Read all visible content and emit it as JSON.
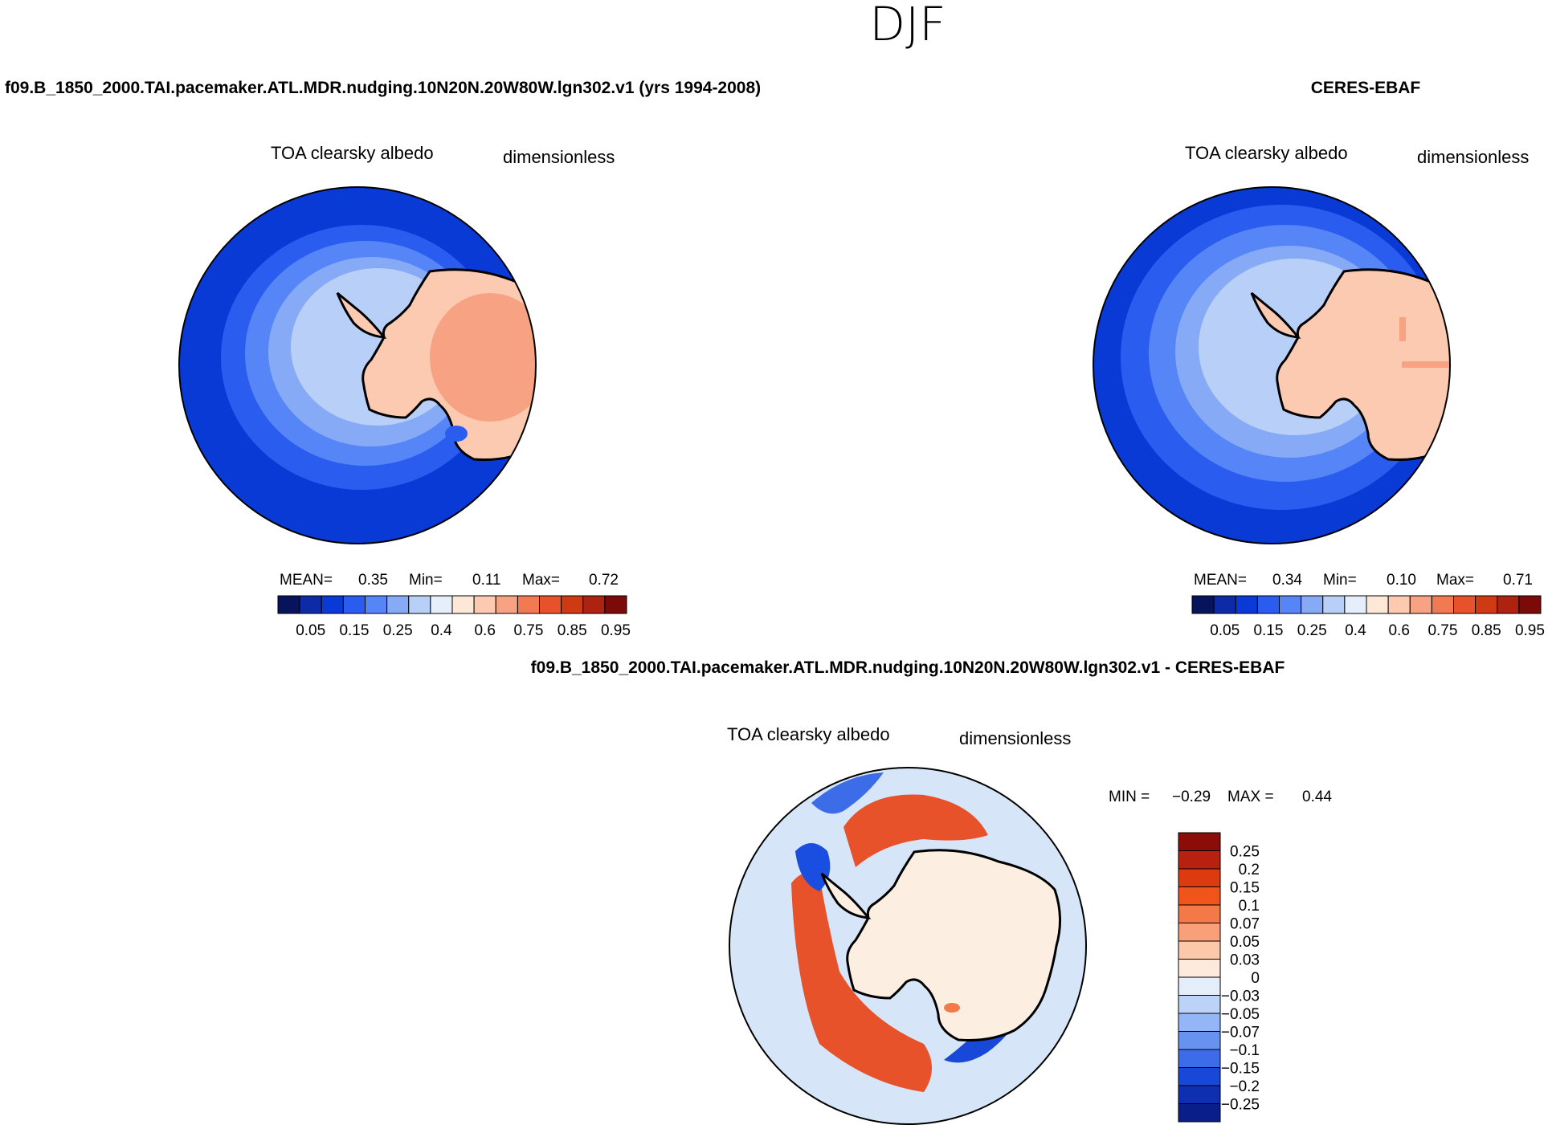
{
  "season": "DJF",
  "colors": {
    "ocean_deep": "#0a3ad6",
    "land_light": "#fcd0b6",
    "land_mid": "#f6a684",
    "diff_neutral": "#fdeee2",
    "diff_ocean": "#d6e6f8",
    "diff_pos": "#e8522a",
    "diff_neg": "#1a4ee0"
  },
  "chart_data": [
    {
      "type": "heatmap",
      "projection": "south-polar-stereographic",
      "title": "f09.B_1850_2000.TAI.pacemaker.ATL.MDR.nudging.10N20N.20W80W.lgn302.v1 (yrs 1994-2008)",
      "variable": "TOA clearsky albedo",
      "units": "dimensionless",
      "stats": {
        "mean_label": "MEAN=",
        "mean": "0.35",
        "min_label": "Min=",
        "min": "0.11",
        "max_label": "Max=",
        "max": "0.72"
      },
      "colorbar": {
        "tick_labels": [
          "0.05",
          "0.15",
          "0.25",
          "0.4",
          "0.6",
          "0.75",
          "0.85",
          "0.95"
        ],
        "colors": [
          "#08135e",
          "#0d2ba6",
          "#0a3ad6",
          "#2a5cf0",
          "#5585f6",
          "#86aaf6",
          "#b8cff7",
          "#e6eefb",
          "#fde8d8",
          "#fccab0",
          "#f7a282",
          "#f27a52",
          "#e8522a",
          "#d03a12",
          "#ae2210",
          "#7c0a08"
        ]
      }
    },
    {
      "type": "heatmap",
      "projection": "south-polar-stereographic",
      "title": "CERES-EBAF",
      "variable": "TOA clearsky albedo",
      "units": "dimensionless",
      "stats": {
        "mean_label": "MEAN=",
        "mean": "0.34",
        "min_label": "Min=",
        "min": "0.10",
        "max_label": "Max=",
        "max": "0.71"
      },
      "colorbar": {
        "tick_labels": [
          "0.05",
          "0.15",
          "0.25",
          "0.4",
          "0.6",
          "0.75",
          "0.85",
          "0.95"
        ],
        "colors": [
          "#08135e",
          "#0d2ba6",
          "#0a3ad6",
          "#2a5cf0",
          "#5585f6",
          "#86aaf6",
          "#b8cff7",
          "#e6eefb",
          "#fde8d8",
          "#fccab0",
          "#f7a282",
          "#f27a52",
          "#e8522a",
          "#d03a12",
          "#ae2210",
          "#7c0a08"
        ]
      }
    },
    {
      "type": "heatmap",
      "projection": "south-polar-stereographic",
      "title": "f09.B_1850_2000.TAI.pacemaker.ATL.MDR.nudging.10N20N.20W80W.lgn302.v1 - CERES-EBAF",
      "variable": "TOA clearsky albedo",
      "units": "dimensionless",
      "stats": {
        "min_label": "MIN =",
        "min": "−0.29",
        "max_label": "MAX =",
        "max": "0.44"
      },
      "colorbar": {
        "orientation": "vertical",
        "tick_labels": [
          "0.25",
          "0.2",
          "0.15",
          "0.1",
          "0.07",
          "0.05",
          "0.03",
          "0",
          "−0.03",
          "−0.05",
          "−0.07",
          "−0.1",
          "−0.15",
          "−0.2",
          "−0.25"
        ],
        "colors": [
          "#8c0c08",
          "#b82010",
          "#dc3a10",
          "#f05418",
          "#f47848",
          "#f7a07a",
          "#fbc8aa",
          "#fdeadc",
          "#e4edfa",
          "#bcd3f8",
          "#94b6f6",
          "#6892f0",
          "#3c6ce8",
          "#1848d8",
          "#0e30b0",
          "#0a1e8a"
        ]
      }
    }
  ]
}
